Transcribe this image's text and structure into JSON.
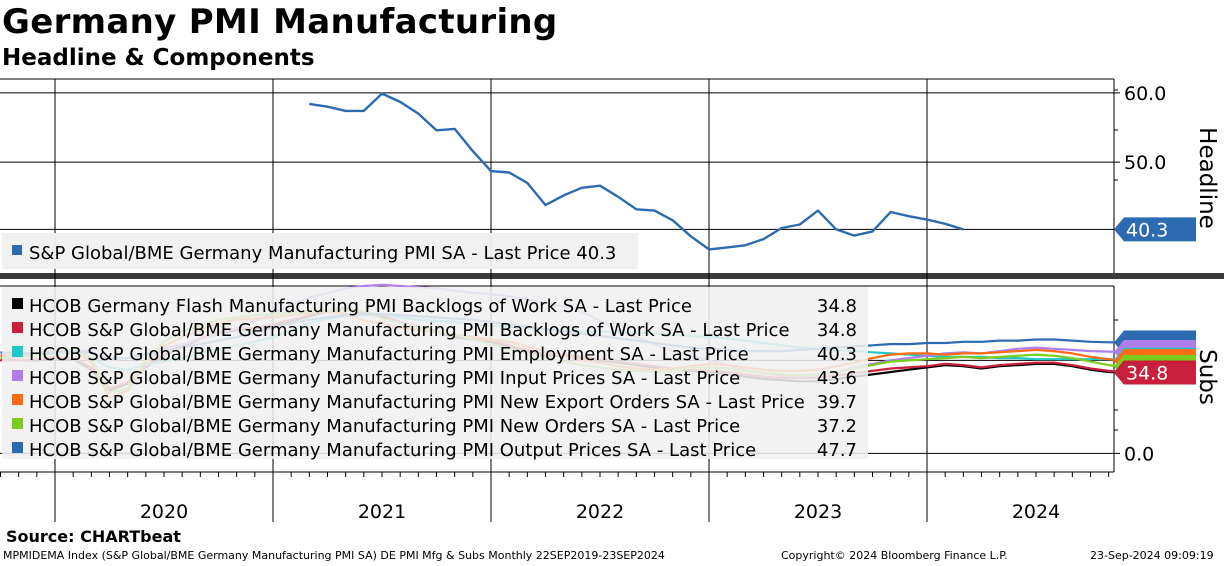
{
  "title": "Germany PMI Manufacturing",
  "subtitle": "Headline & Components",
  "source": "Source: CHARTbeat",
  "footer_left": "MPMIDEMA Index (S&P Global/BME Germany Manufacturing PMI SA) DE PMI Mfg & Subs  Monthly 22SEP2019-23SEP2024",
  "footer_center": "Copyright© 2024 Bloomberg Finance L.P.",
  "footer_right": "23-Sep-2024 09:09:19",
  "chart_data": [
    {
      "type": "line",
      "panel": "Headline",
      "ylabel": "Headline",
      "yticks": [
        "60.0",
        "50.0"
      ],
      "ylim": [
        34,
        62
      ],
      "series": [
        {
          "name": "S&P Global/BME Germany Manufacturing PMI SA",
          "legend": "S&P Global/BME Germany Manufacturing PMI SA - Last Price 40.3",
          "color": "#2d6bb0",
          "last_label": "40.3",
          "start_month": "2021-03",
          "values": [
            58.4,
            58.0,
            57.4,
            57.4,
            59.9,
            58.7,
            57.0,
            54.6,
            54.8,
            51.6,
            48.7,
            48.5,
            47.0,
            43.8,
            45.2,
            46.3,
            46.6,
            45.0,
            43.2,
            43.0,
            41.6,
            39.3,
            37.4,
            37.7,
            38.0,
            38.9,
            40.5,
            41.0,
            43.0,
            40.3,
            39.4,
            40.0,
            42.8,
            42.2,
            41.7,
            41.1,
            40.3
          ]
        }
      ]
    },
    {
      "type": "line",
      "panel": "Subs",
      "ylabel": "Subs",
      "yticks": [
        "0.0"
      ],
      "ylim": [
        -8,
        72
      ],
      "start_month": "2019-10",
      "series": [
        {
          "name": "HCOB Germany Flash Manufacturing PMI Backlogs of Work SA",
          "legend": "HCOB Germany Flash Manufacturing PMI Backlogs of Work SA - Last Price",
          "last": "34.8",
          "color": "#000000",
          "values": [
            40.5,
            40.0,
            40.0,
            41.0,
            40.5,
            36.0,
            27.0,
            30.0,
            37.0,
            42.0,
            46.0,
            49.0,
            51.5,
            53.0,
            53.5,
            55.0,
            57.0,
            59.0,
            61.0,
            62.0,
            60.0,
            59.0,
            56.0,
            54.0,
            52.0,
            50.0,
            49.0,
            48.0,
            46.0,
            44.0,
            42.0,
            42.0,
            41.0,
            40.0,
            39.0,
            38.0,
            37.0,
            36.0,
            35.5,
            35.0,
            34.0,
            33.0,
            32.0,
            31.5,
            31.0,
            31.0,
            32.0,
            33.0,
            34.0,
            35.0,
            36.0,
            37.0,
            38.0,
            37.5,
            36.5,
            37.5,
            38.0,
            38.5,
            38.5,
            37.5,
            36.0,
            35.0,
            34.8
          ]
        },
        {
          "name": "HCOB S&P Global/BME Germany Manufacturing PMI Backlogs of Work SA",
          "legend": "HCOB S&P Global/BME Germany Manufacturing PMI Backlogs of Work SA - Last Price",
          "last": "34.8",
          "color": "#c8203c",
          "values": [
            40.0,
            40.0,
            40.5,
            41.5,
            41.0,
            37.0,
            28.0,
            30.5,
            37.5,
            42.5,
            46.5,
            49.5,
            52.0,
            53.5,
            54.0,
            55.5,
            57.5,
            59.5,
            61.5,
            62.5,
            60.5,
            59.5,
            56.5,
            54.5,
            52.5,
            50.5,
            49.5,
            48.5,
            46.5,
            44.5,
            42.5,
            42.5,
            41.5,
            40.5,
            39.5,
            38.5,
            37.5,
            36.5,
            36.0,
            35.5,
            35.0,
            34.0,
            33.0,
            32.5,
            32.5,
            32.5,
            33.5,
            34.5,
            35.5,
            36.5,
            37.0,
            37.5,
            38.5,
            38.0,
            37.0,
            38.0,
            38.5,
            39.0,
            39.0,
            38.0,
            36.5,
            35.5,
            34.8
          ]
        },
        {
          "name": "HCOB S&P Global/BME Germany Manufacturing PMI Employment SA",
          "legend": "HCOB S&P Global/BME Germany Manufacturing PMI Employment SA - Last Price",
          "last": "40.3",
          "color": "#20c8c8",
          "values": [
            41.5,
            42.0,
            42.5,
            43.0,
            43.5,
            41.0,
            37.0,
            36.0,
            38.0,
            39.5,
            41.0,
            43.0,
            45.0,
            46.5,
            48.0,
            50.0,
            53.0,
            56.0,
            58.0,
            59.0,
            59.5,
            60.0,
            58.5,
            57.5,
            57.0,
            56.5,
            55.5,
            55.0,
            54.5,
            54.0,
            53.5,
            53.0,
            52.5,
            52.5,
            52.0,
            52.0,
            51.5,
            51.0,
            50.5,
            50.0,
            49.5,
            48.5,
            47.5,
            46.5,
            45.5,
            45.0,
            44.5,
            44.0,
            43.5,
            43.0,
            42.5,
            42.0,
            41.5,
            41.5,
            41.5,
            41.0,
            41.0,
            40.5,
            40.5,
            40.5,
            40.5,
            40.5,
            40.3
          ]
        },
        {
          "name": "HCOB S&P Global/BME Germany Manufacturing PMI Input Prices SA",
          "legend": "HCOB S&P Global/BME Germany Manufacturing PMI Input Prices SA - Last Price",
          "last": "43.6",
          "color": "#b07ee8",
          "values": [
            42.5,
            42.0,
            42.5,
            43.5,
            44.5,
            44.0,
            40.0,
            41.0,
            43.0,
            45.0,
            47.0,
            49.0,
            51.5,
            54.0,
            57.0,
            60.0,
            64.0,
            67.0,
            69.0,
            71.0,
            72.0,
            72.5,
            72.0,
            71.5,
            71.0,
            70.0,
            69.0,
            68.5,
            67.5,
            66.0,
            65.0,
            63.0,
            61.0,
            57.0,
            53.0,
            50.0,
            47.0,
            44.0,
            42.0,
            40.0,
            38.0,
            36.0,
            34.5,
            33.5,
            33.0,
            33.5,
            35.0,
            37.0,
            38.5,
            40.0,
            41.0,
            42.0,
            43.0,
            43.5,
            43.0,
            44.0,
            45.0,
            45.5,
            45.0,
            44.5,
            44.0,
            43.8,
            43.6
          ]
        },
        {
          "name": "HCOB S&P Global/BME Germany Manufacturing PMI New Export Orders SA",
          "legend": "HCOB S&P Global/BME Germany Manufacturing PMI New Export Orders SA - Last Price",
          "last": "39.7",
          "color": "#ff6a14",
          "values": [
            42.0,
            42.0,
            43.0,
            44.0,
            44.5,
            39.0,
            24.0,
            27.0,
            39.0,
            46.0,
            50.0,
            53.0,
            56.0,
            57.5,
            58.0,
            58.5,
            59.5,
            60.5,
            61.0,
            60.0,
            57.0,
            56.0,
            54.0,
            53.0,
            52.0,
            51.0,
            50.0,
            49.0,
            48.0,
            46.0,
            44.0,
            42.0,
            40.0,
            39.0,
            37.5,
            36.5,
            36.0,
            36.5,
            37.5,
            38.5,
            38.0,
            37.0,
            36.0,
            35.5,
            35.5,
            36.0,
            37.5,
            39.0,
            41.0,
            42.5,
            43.0,
            43.0,
            42.5,
            43.0,
            43.0,
            43.5,
            44.0,
            44.5,
            44.0,
            43.0,
            41.5,
            40.5,
            39.7
          ]
        },
        {
          "name": "HCOB S&P Global/BME Germany Manufacturing PMI New Orders SA",
          "legend": "HCOB S&P Global/BME Germany Manufacturing PMI New Orders SA - Last Price",
          "last": "37.2",
          "color": "#7ccc20",
          "values": [
            41.0,
            41.5,
            42.0,
            43.5,
            45.0,
            41.0,
            26.0,
            28.0,
            40.0,
            48.0,
            52.5,
            55.0,
            57.5,
            58.5,
            59.5,
            60.0,
            60.5,
            61.0,
            61.5,
            62.0,
            61.0,
            58.0,
            56.0,
            54.0,
            52.0,
            51.0,
            49.0,
            47.0,
            45.0,
            43.0,
            41.0,
            39.5,
            38.0,
            37.0,
            36.0,
            35.5,
            35.0,
            35.5,
            36.5,
            37.0,
            36.5,
            35.5,
            34.5,
            34.0,
            33.5,
            34.0,
            35.0,
            36.5,
            38.0,
            39.5,
            40.0,
            40.5,
            41.0,
            41.5,
            41.0,
            41.5,
            42.0,
            42.5,
            42.0,
            41.0,
            39.5,
            38.0,
            37.2
          ]
        },
        {
          "name": "HCOB S&P Global/BME Germany Manufacturing PMI Output Prices SA",
          "legend": "HCOB S&P Global/BME Germany Manufacturing PMI Output Prices SA - Last Price",
          "last": "47.7",
          "color": "#2d6bb0",
          "values": [
            43.5,
            43.0,
            43.0,
            43.5,
            44.0,
            43.0,
            41.0,
            41.0,
            42.5,
            44.0,
            45.5,
            47.0,
            48.5,
            50.0,
            52.0,
            54.0,
            56.0,
            57.5,
            58.5,
            59.5,
            60.0,
            60.0,
            59.5,
            59.0,
            58.5,
            58.0,
            57.5,
            56.5,
            55.5,
            54.5,
            53.5,
            52.5,
            51.5,
            50.5,
            49.5,
            48.5,
            47.5,
            46.5,
            45.5,
            45.0,
            44.5,
            44.0,
            44.0,
            44.0,
            44.5,
            45.0,
            45.5,
            46.0,
            46.5,
            47.0,
            47.0,
            47.5,
            47.5,
            48.0,
            48.0,
            48.5,
            48.5,
            49.0,
            49.0,
            48.5,
            48.0,
            47.8,
            47.7
          ]
        }
      ]
    }
  ],
  "x_axis": {
    "years": [
      "2020",
      "2021",
      "2022",
      "2023",
      "2024"
    ]
  }
}
